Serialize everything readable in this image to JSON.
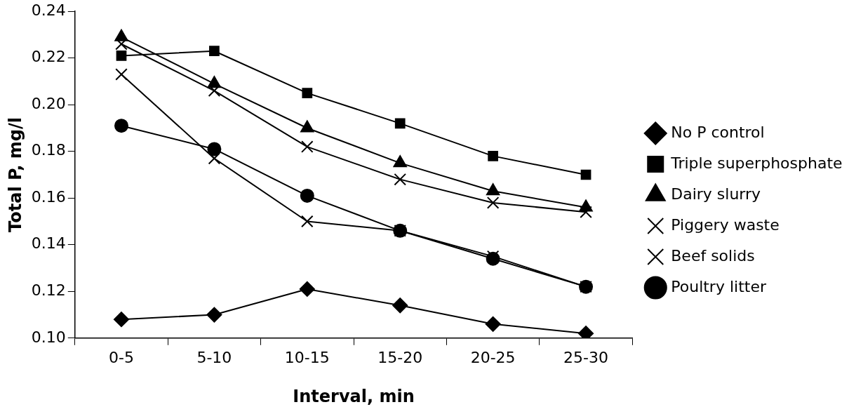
{
  "chart_data": {
    "type": "line",
    "xlabel": "Interval, min",
    "ylabel": "Total P, mg/l",
    "categories": [
      "0-5",
      "5-10",
      "10-15",
      "15-20",
      "20-25",
      "25-30"
    ],
    "ylim": [
      0.1,
      0.24
    ],
    "yticks": [
      {
        "value": 0.1,
        "label": "0.10"
      },
      {
        "value": 0.12,
        "label": "0.12"
      },
      {
        "value": 0.14,
        "label": "0.14"
      },
      {
        "value": 0.16,
        "label": "0.16"
      },
      {
        "value": 0.18,
        "label": "0.18"
      },
      {
        "value": 0.2,
        "label": "0.20"
      },
      {
        "value": 0.22,
        "label": "0.22"
      },
      {
        "value": 0.24,
        "label": "0.24"
      }
    ],
    "grid": false,
    "legend": "right",
    "line_style": "solid",
    "series": [
      {
        "name": "No P control",
        "color": "#000000",
        "marker": "diamond",
        "values": [
          0.108,
          0.11,
          0.121,
          0.114,
          0.106,
          0.102
        ]
      },
      {
        "name": "Triple superphosphate",
        "color": "#000000",
        "marker": "square",
        "values": [
          0.221,
          0.223,
          0.205,
          0.192,
          0.178,
          0.17
        ]
      },
      {
        "name": "Dairy slurry",
        "color": "#000000",
        "marker": "triangle",
        "values": [
          0.229,
          0.209,
          0.19,
          0.175,
          0.163,
          0.156
        ]
      },
      {
        "name": "Piggery waste",
        "color": "#000000",
        "marker": "cross",
        "values": [
          0.226,
          0.206,
          0.182,
          0.168,
          0.158,
          0.154
        ]
      },
      {
        "name": "Beef solids",
        "color": "#000000",
        "marker": "cross",
        "values": [
          0.213,
          0.177,
          0.15,
          0.146,
          0.135,
          0.122
        ]
      },
      {
        "name": "Poultry litter",
        "color": "#000000",
        "marker": "circle",
        "values": [
          0.191,
          0.181,
          0.161,
          0.146,
          0.134,
          0.122
        ]
      }
    ]
  }
}
